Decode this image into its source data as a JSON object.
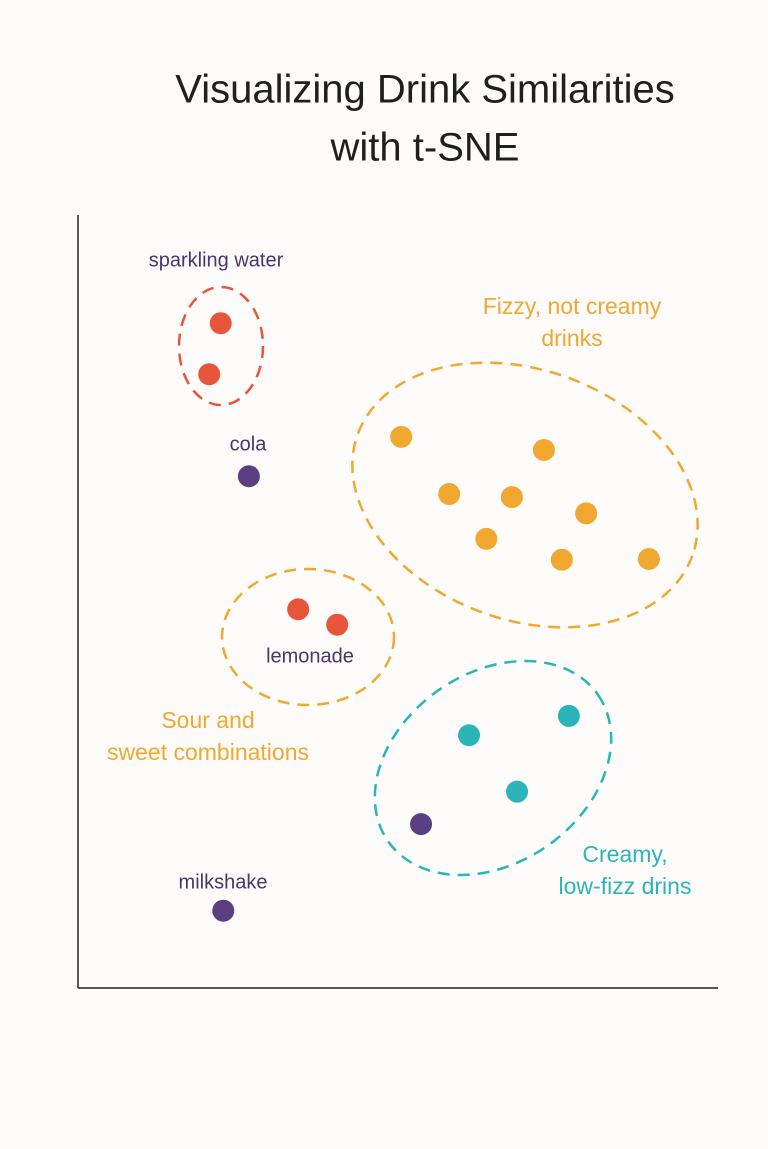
{
  "chart_data": {
    "type": "scatter",
    "title": [
      "Visualizing Drink Similarities",
      "with t-SNE"
    ],
    "xlim": [
      0,
      100
    ],
    "ylim": [
      0,
      100
    ],
    "series": [
      {
        "color": "#e8553a",
        "x": [
          22.3,
          20.5,
          34.4,
          40.5
        ],
        "values": [
          86.0,
          79.4,
          49.0,
          47.0
        ]
      },
      {
        "color": "#f0a830",
        "x": [
          50.5,
          72.8,
          58.0,
          67.8,
          79.4,
          63.8,
          75.6,
          89.2
        ],
        "values": [
          71.3,
          69.6,
          63.9,
          63.5,
          61.4,
          58.1,
          55.4,
          55.5
        ]
      },
      {
        "color": "#2bb5b8",
        "x": [
          76.7,
          61.1,
          68.6
        ],
        "values": [
          35.2,
          32.7,
          25.4
        ]
      },
      {
        "color": "#5b3f80",
        "x": [
          26.7,
          53.6,
          22.7
        ],
        "values": [
          66.2,
          21.2,
          10.0
        ]
      }
    ],
    "annotations": [
      {
        "lines": [
          "sparkling water"
        ],
        "color": "#4a3470"
      },
      {
        "lines": [
          "cola"
        ],
        "color": "#4a3470"
      },
      {
        "lines": [
          "lemonade"
        ],
        "color": "#4a3470"
      },
      {
        "lines": [
          "milkshake"
        ],
        "color": "#4a3470"
      },
      {
        "lines": [
          "Fizzy, not creamy",
          "drinks"
        ],
        "color": "#f0a830"
      },
      {
        "lines": [
          "Sour and",
          "sweet combinations"
        ],
        "color": "#f0a830"
      },
      {
        "lines": [
          "Creamy,",
          "low-fizz drins"
        ],
        "color": "#2bb5b8"
      }
    ]
  }
}
